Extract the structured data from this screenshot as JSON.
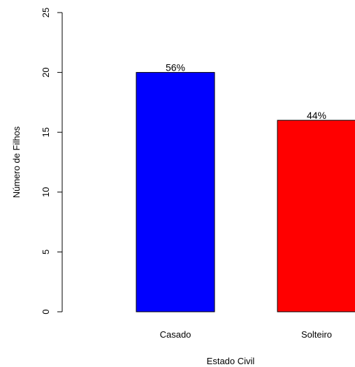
{
  "chart_data": {
    "type": "bar",
    "title": "",
    "xlabel": "Estado Civil",
    "ylabel": "Número de Filhos",
    "categories": [
      "Casado",
      "Solteiro"
    ],
    "values": [
      20,
      16
    ],
    "data_labels": [
      "56%",
      "44%"
    ],
    "colors": [
      "#0000ff",
      "#ff0000"
    ],
    "ylim": [
      0,
      25
    ],
    "yticks": [
      "0",
      "5",
      "10",
      "15",
      "20",
      "25"
    ],
    "grid": false,
    "legend": "none"
  }
}
